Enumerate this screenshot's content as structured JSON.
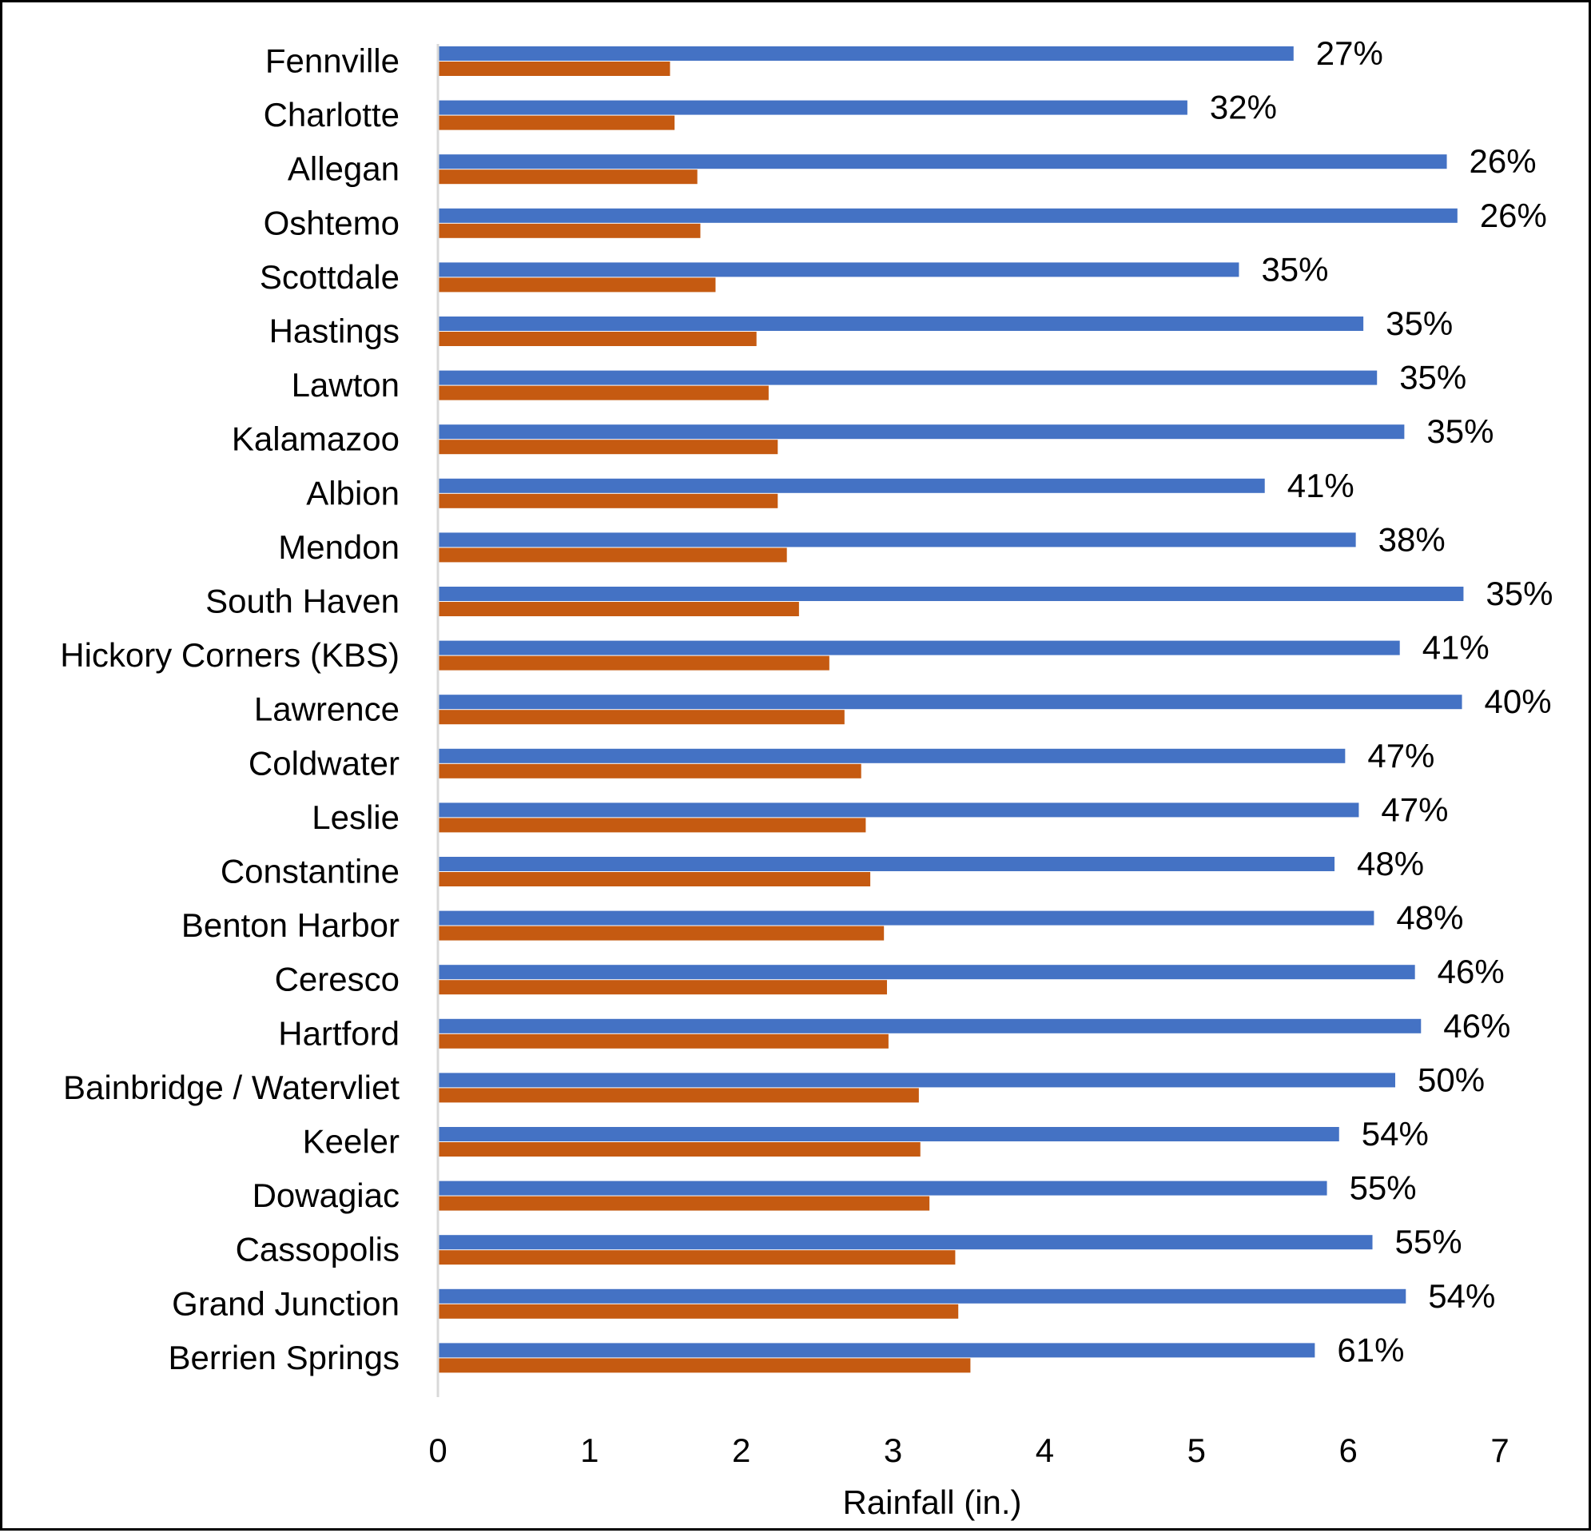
{
  "chart_data": {
    "type": "bar",
    "orientation": "horizontal",
    "categories": [
      "Fennville",
      "Charlotte",
      "Allegan",
      "Oshtemo",
      "Scottdale",
      "Hastings",
      "Lawton",
      "Kalamazoo",
      "Albion",
      "Mendon",
      "South Haven",
      "Hickory Corners (KBS)",
      "Lawrence",
      "Coldwater",
      "Leslie",
      "Constantine",
      "Benton Harbor",
      "Ceresco",
      "Hartford",
      "Bainbridge / Watervliet",
      "Keeler",
      "Dowagiac",
      "Cassopolis",
      "Grand Junction",
      "Berrien Springs"
    ],
    "series": [
      {
        "color": "#4472C4",
        "values": [
          5.64,
          4.94,
          6.65,
          6.72,
          5.28,
          6.1,
          6.19,
          6.37,
          5.45,
          6.05,
          6.76,
          6.34,
          6.75,
          5.98,
          6.07,
          5.91,
          6.17,
          6.44,
          6.48,
          6.31,
          5.94,
          5.86,
          6.16,
          6.38,
          5.78
        ],
        "data_labels": [
          "27%",
          "32%",
          "26%",
          "26%",
          "35%",
          "35%",
          "35%",
          "35%",
          "41%",
          "38%",
          "35%",
          "41%",
          "40%",
          "47%",
          "47%",
          "48%",
          "48%",
          "46%",
          "46%",
          "50%",
          "54%",
          "55%",
          "55%",
          "54%",
          "61%"
        ]
      },
      {
        "color": "#C55A11",
        "values": [
          1.53,
          1.56,
          1.71,
          1.73,
          1.83,
          2.1,
          2.18,
          2.24,
          2.24,
          2.3,
          2.38,
          2.58,
          2.68,
          2.79,
          2.82,
          2.85,
          2.94,
          2.96,
          2.97,
          3.17,
          3.18,
          3.24,
          3.41,
          3.43,
          3.51
        ]
      }
    ],
    "xlabel": "Rainfall (in.)",
    "xlim": [
      0,
      7
    ],
    "xticks": [
      0,
      1,
      2,
      3,
      4,
      5,
      6,
      7
    ],
    "grid": false,
    "legend": "none"
  }
}
